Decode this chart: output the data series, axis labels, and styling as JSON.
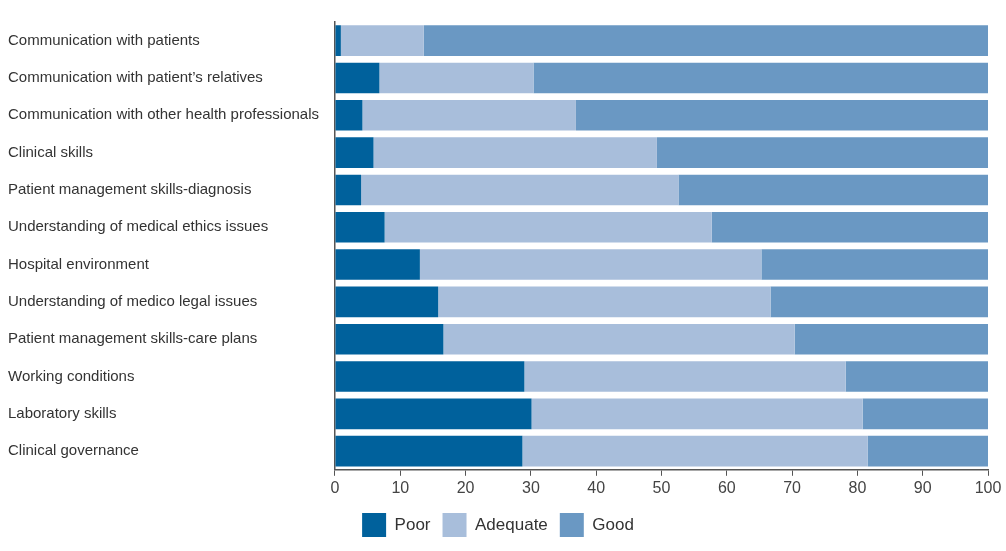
{
  "chart_data": {
    "type": "bar",
    "orientation": "horizontal",
    "stacked": true,
    "categories": [
      "Communication with patients",
      "Communication with patient’s relatives",
      "Communication with other health professionals",
      "Clinical skills",
      "Patient management skills-diagnosis",
      "Understanding of medical ethics issues",
      "Hospital environment",
      "Understanding of medico legal issues",
      "Patient management skills-care plans",
      "Working conditions",
      "Laboratory skills",
      "Clinical governance"
    ],
    "series": [
      {
        "name": "Poor",
        "color": "#00619c",
        "values": [
          0.9,
          6.8,
          4.2,
          5.9,
          4.0,
          7.6,
          13.0,
          15.8,
          16.6,
          29.0,
          30.1,
          28.7
        ]
      },
      {
        "name": "Adequate",
        "color": "#a8bedb",
        "values": [
          12.7,
          23.6,
          32.7,
          43.4,
          48.6,
          50.1,
          52.3,
          50.9,
          53.8,
          49.2,
          50.7,
          52.9
        ]
      },
      {
        "name": "Good",
        "color": "#6a98c3",
        "values": [
          86.4,
          69.6,
          63.1,
          50.7,
          47.4,
          42.3,
          34.7,
          33.3,
          29.6,
          21.8,
          19.2,
          18.4
        ]
      }
    ],
    "xlim": [
      0,
      100
    ],
    "xticks": [
      0,
      10,
      20,
      30,
      40,
      50,
      60,
      70,
      80,
      90,
      100
    ],
    "grid": false,
    "legend": "bottom"
  }
}
